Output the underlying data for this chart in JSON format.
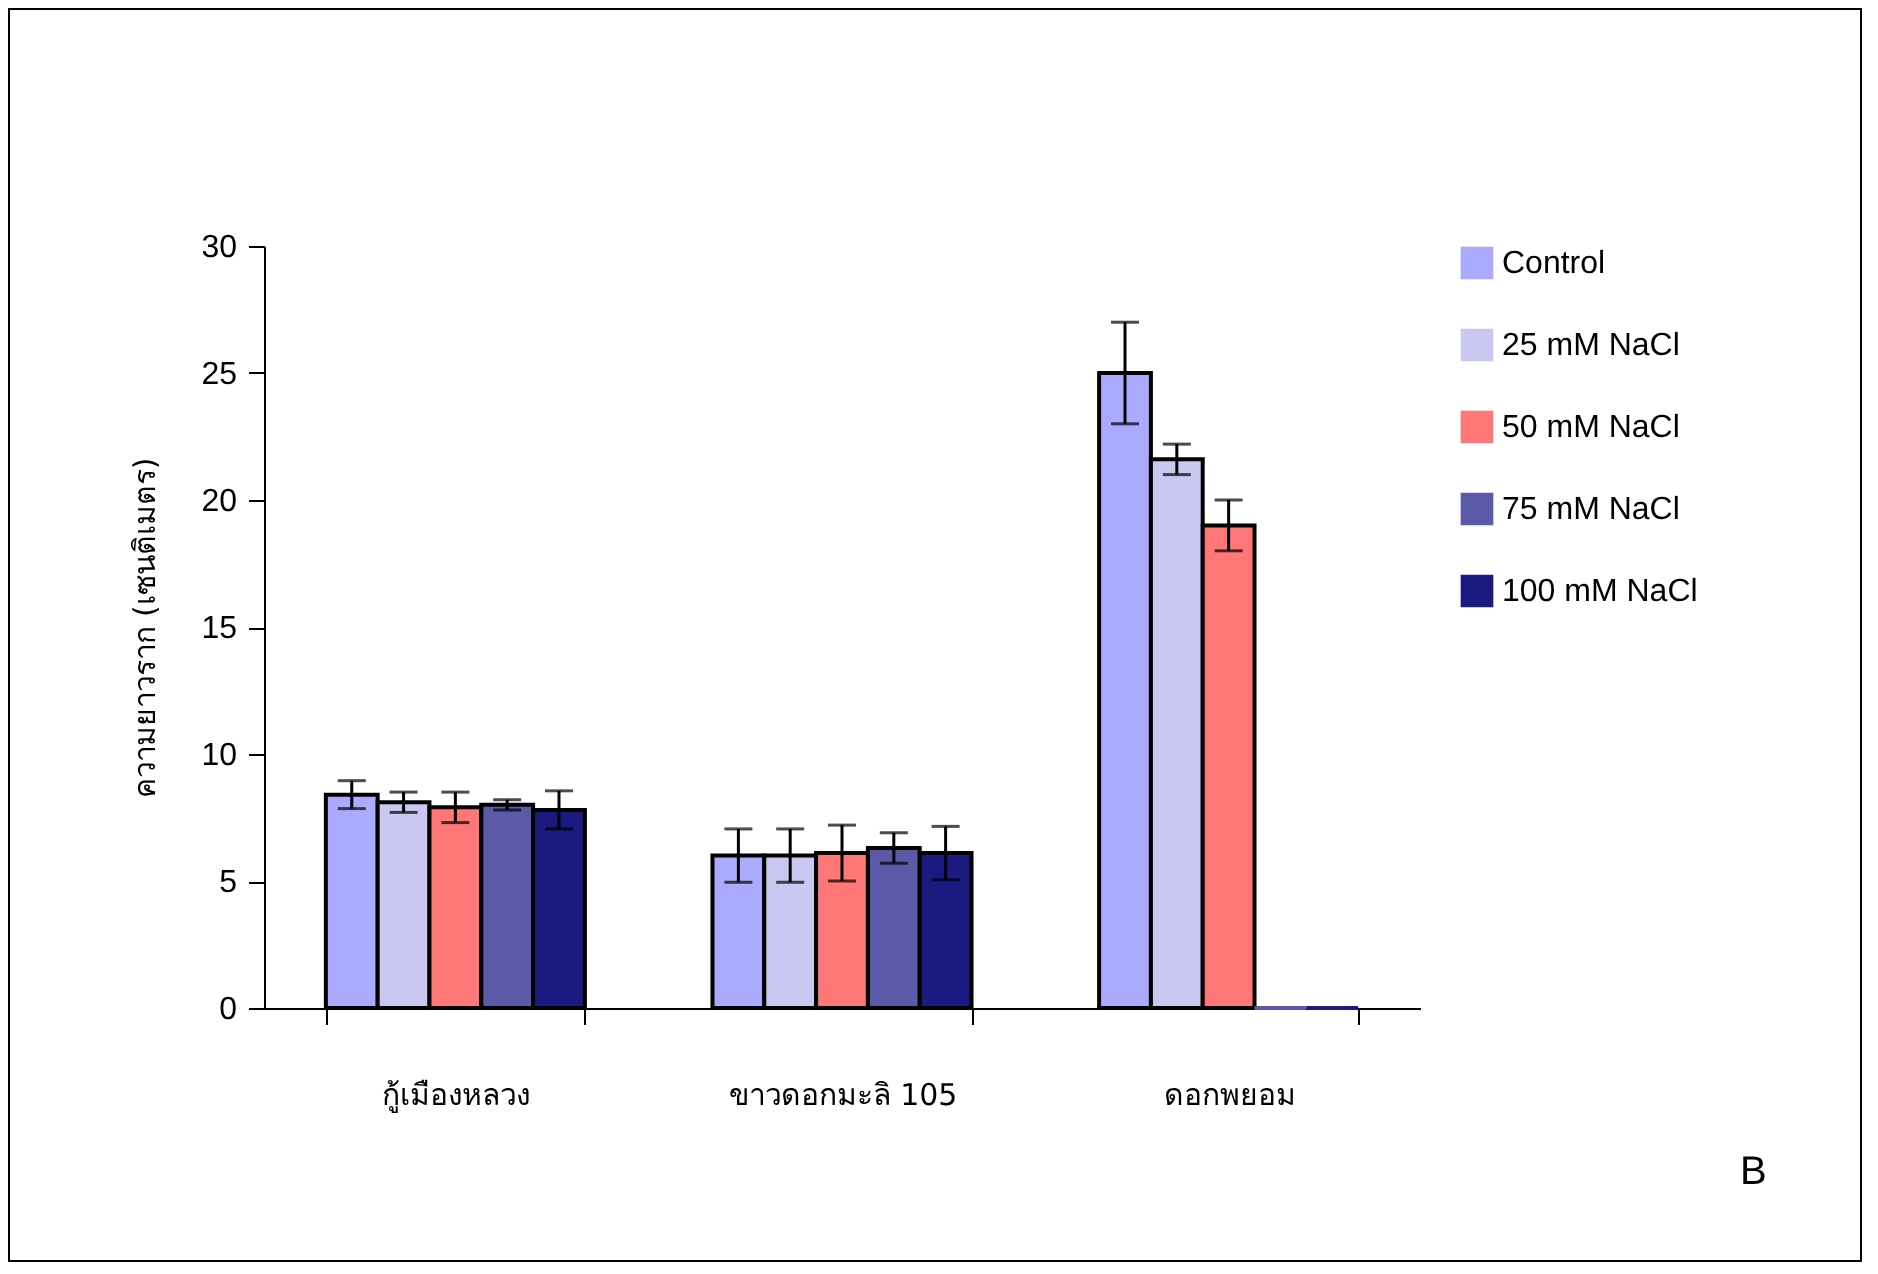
{
  "chart_data": {
    "type": "bar",
    "ylabel": "ความยาวราก (เซนติเมตร)",
    "categories": [
      "กู้เมืองหลวง",
      "ขาวดอกมะลิ 105",
      "ดอกพยอม"
    ],
    "series": [
      {
        "name": "Control",
        "color": "#aaaaff",
        "values": [
          8.4,
          6.0,
          25.0
        ],
        "errors": [
          0.55,
          1.05,
          2.0
        ]
      },
      {
        "name": "25 mM NaCl",
        "color": "#c8c8f0",
        "values": [
          8.1,
          6.0,
          21.6
        ],
        "errors": [
          0.4,
          1.05,
          0.6
        ]
      },
      {
        "name": "50 mM NaCl",
        "color": "#ff7777",
        "values": [
          7.9,
          6.1,
          19.0
        ],
        "errors": [
          0.6,
          1.1,
          1.0
        ]
      },
      {
        "name": "75 mM NaCl",
        "color": "#5a5aa8",
        "values": [
          8.0,
          6.3,
          0
        ],
        "errors": [
          0.2,
          0.6,
          null
        ]
      },
      {
        "name": "100 mM NaCl",
        "color": "#1a1a80",
        "values": [
          7.8,
          6.1,
          0
        ],
        "errors": [
          0.75,
          1.05,
          null
        ]
      }
    ],
    "ylim": [
      0,
      30
    ],
    "yticks": [
      0,
      5,
      10,
      15,
      20,
      25,
      30
    ],
    "grid": false,
    "legend": "right",
    "annotations": [
      "B"
    ]
  }
}
